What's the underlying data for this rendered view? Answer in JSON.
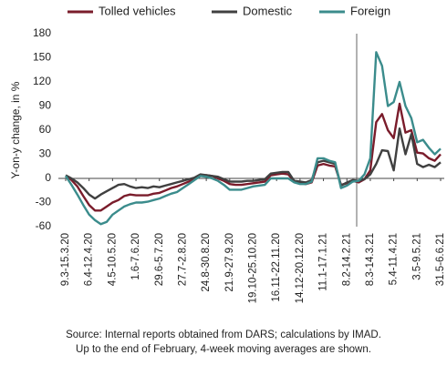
{
  "chart_data": {
    "type": "line",
    "y_label": "Y-on-y change, in %",
    "note": [
      "Source: Internal reports obtained from DARS; calculations by IMAD.",
      "Up to the end of February, 4-week moving averages are shown."
    ],
    "categories": [
      "9.3-15.3.20",
      null,
      null,
      null,
      "6.4-12.4.20",
      null,
      null,
      null,
      "4.5-10.5.20",
      null,
      null,
      null,
      "1.6-7.6.20",
      null,
      null,
      null,
      "29.6-5.7.20",
      null,
      null,
      null,
      "27.7-2.8.20",
      null,
      null,
      null,
      "24.8-30.8.20",
      null,
      null,
      null,
      "21.9-27.9.20",
      null,
      null,
      null,
      "19.10-25.10.20",
      null,
      null,
      null,
      "16.11-22.11.20",
      null,
      null,
      null,
      "14.12-20.12.20",
      null,
      null,
      null,
      "11.1-17.1.21",
      null,
      null,
      null,
      "8.2-14.2.21",
      null,
      null,
      null,
      "8.3-14.3.21",
      null,
      null,
      null,
      "5.4-11.4.21",
      null,
      null,
      null,
      "3.5-9.5.21",
      null,
      null,
      null,
      "31.5-6.6.21"
    ],
    "series": [
      {
        "name": "Tolled vehicles",
        "color": "#7a1c2b",
        "values": [
          3,
          -2,
          -10,
          -22,
          -33,
          -40,
          -40,
          -35,
          -30,
          -27,
          -22,
          -20,
          -21,
          -21,
          -21,
          -19,
          -18,
          -15,
          -12,
          -10,
          -7,
          -4,
          -1,
          3,
          4,
          3,
          0,
          -3,
          -7,
          -8,
          -8,
          -7,
          -6,
          -5,
          -4,
          4,
          5,
          6,
          5,
          -4,
          -6,
          -7,
          -5,
          16,
          18,
          16,
          15,
          -8,
          -6,
          -3,
          -5,
          -1,
          10,
          70,
          80,
          60,
          50,
          93,
          57,
          60,
          32,
          31,
          25,
          22,
          30
        ]
      },
      {
        "name": "Domestic",
        "color": "#404040",
        "values": [
          4,
          0,
          -5,
          -12,
          -20,
          -25,
          -20,
          -16,
          -12,
          -8,
          -7,
          -10,
          -12,
          -11,
          -12,
          -10,
          -11,
          -9,
          -7,
          -5,
          -3,
          -1,
          1,
          5,
          4,
          3,
          2,
          -1,
          -4,
          -4,
          -4,
          -3,
          -3,
          -2,
          -1,
          6,
          7,
          8,
          8,
          -3,
          -4,
          -5,
          -2,
          20,
          22,
          20,
          18,
          -9,
          -5,
          -2,
          -3,
          -1,
          5,
          18,
          35,
          34,
          10,
          62,
          30,
          55,
          18,
          14,
          17,
          14,
          20
        ]
      },
      {
        "name": "Foreign",
        "color": "#3b8c8c",
        "values": [
          3,
          -8,
          -20,
          -33,
          -45,
          -52,
          -57,
          -54,
          -45,
          -40,
          -35,
          -32,
          -30,
          -30,
          -29,
          -27,
          -25,
          -22,
          -19,
          -17,
          -12,
          -7,
          -2,
          3,
          2,
          0,
          -3,
          -8,
          -14,
          -14,
          -14,
          -12,
          -10,
          -9,
          -8,
          0,
          0,
          0,
          0,
          -5,
          -7,
          -7,
          -4,
          25,
          25,
          22,
          20,
          -12,
          -9,
          -4,
          -3,
          5,
          25,
          157,
          140,
          90,
          95,
          120,
          90,
          75,
          45,
          48,
          38,
          30,
          37
        ]
      }
    ],
    "ylim": [
      -60,
      180
    ],
    "yticks": [
      -60,
      -30,
      0,
      30,
      60,
      90,
      120,
      150,
      180
    ]
  }
}
